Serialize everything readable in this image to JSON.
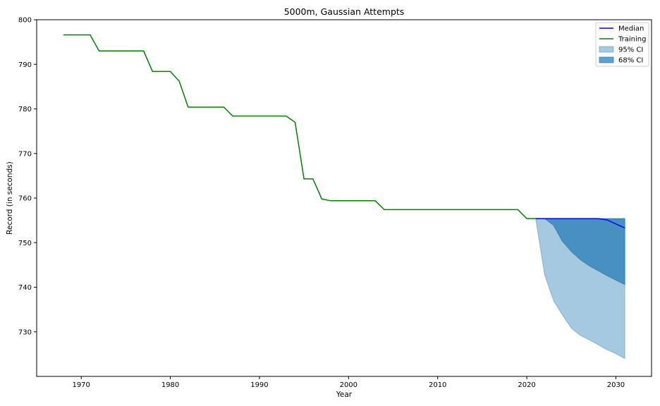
{
  "chart_data": {
    "type": "line",
    "title": "5000m, Gaussian Attempts",
    "xlabel": "Year",
    "ylabel": "Record (in seconds)",
    "xlim": [
      1965,
      2034
    ],
    "ylim": [
      720,
      800
    ],
    "xticks": [
      1970,
      1980,
      1990,
      2000,
      2010,
      2020,
      2030
    ],
    "yticks": [
      730,
      740,
      750,
      760,
      770,
      780,
      790,
      800
    ],
    "grid": false,
    "legend_position": "top-right",
    "legend": [
      "Median",
      "Training",
      "95% CI",
      "68% CI"
    ],
    "colors": {
      "median": "#0000ff",
      "training": "#008000",
      "ci95": "#1f77b4",
      "ci68": "#1f77b4"
    },
    "series": [
      {
        "name": "Training",
        "x": [
          1968,
          1971,
          1972,
          1977,
          1978,
          1980,
          1981,
          1982,
          1986,
          1987,
          1993,
          1994,
          1995,
          1996,
          1997,
          1998,
          2003,
          2004,
          2019,
          2020,
          2021
        ],
        "y": [
          796.6,
          796.6,
          793.0,
          793.0,
          788.4,
          788.4,
          786.2,
          780.4,
          780.4,
          778.4,
          778.4,
          777.0,
          764.3,
          764.3,
          759.8,
          759.4,
          759.4,
          757.4,
          757.4,
          755.4,
          755.4
        ]
      },
      {
        "name": "Median",
        "x": [
          2021,
          2022,
          2023,
          2024,
          2025,
          2026,
          2027,
          2028,
          2029,
          2030,
          2031
        ],
        "y": [
          755.4,
          755.4,
          755.4,
          755.4,
          755.4,
          755.4,
          755.4,
          755.4,
          755.1,
          754.2,
          753.3
        ]
      },
      {
        "name": "95% CI",
        "x": [
          2021,
          2022,
          2023,
          2024,
          2025,
          2026,
          2027,
          2028,
          2029,
          2030,
          2031
        ],
        "lower": [
          755.4,
          742.8,
          737.0,
          733.8,
          730.8,
          729.2,
          728.2,
          727.1,
          726.0,
          725.1,
          724.0
        ],
        "upper": [
          755.4,
          755.4,
          755.4,
          755.4,
          755.4,
          755.4,
          755.4,
          755.4,
          755.4,
          755.4,
          755.4
        ]
      },
      {
        "name": "68% CI",
        "x": [
          2021,
          2022,
          2023,
          2024,
          2025,
          2026,
          2027,
          2028,
          2029,
          2030,
          2031
        ],
        "lower": [
          755.4,
          755.4,
          753.9,
          750.3,
          748.0,
          746.2,
          744.8,
          743.7,
          742.6,
          741.6,
          740.6
        ],
        "upper": [
          755.4,
          755.4,
          755.4,
          755.4,
          755.4,
          755.4,
          755.4,
          755.4,
          755.4,
          755.4,
          755.4
        ]
      }
    ]
  }
}
